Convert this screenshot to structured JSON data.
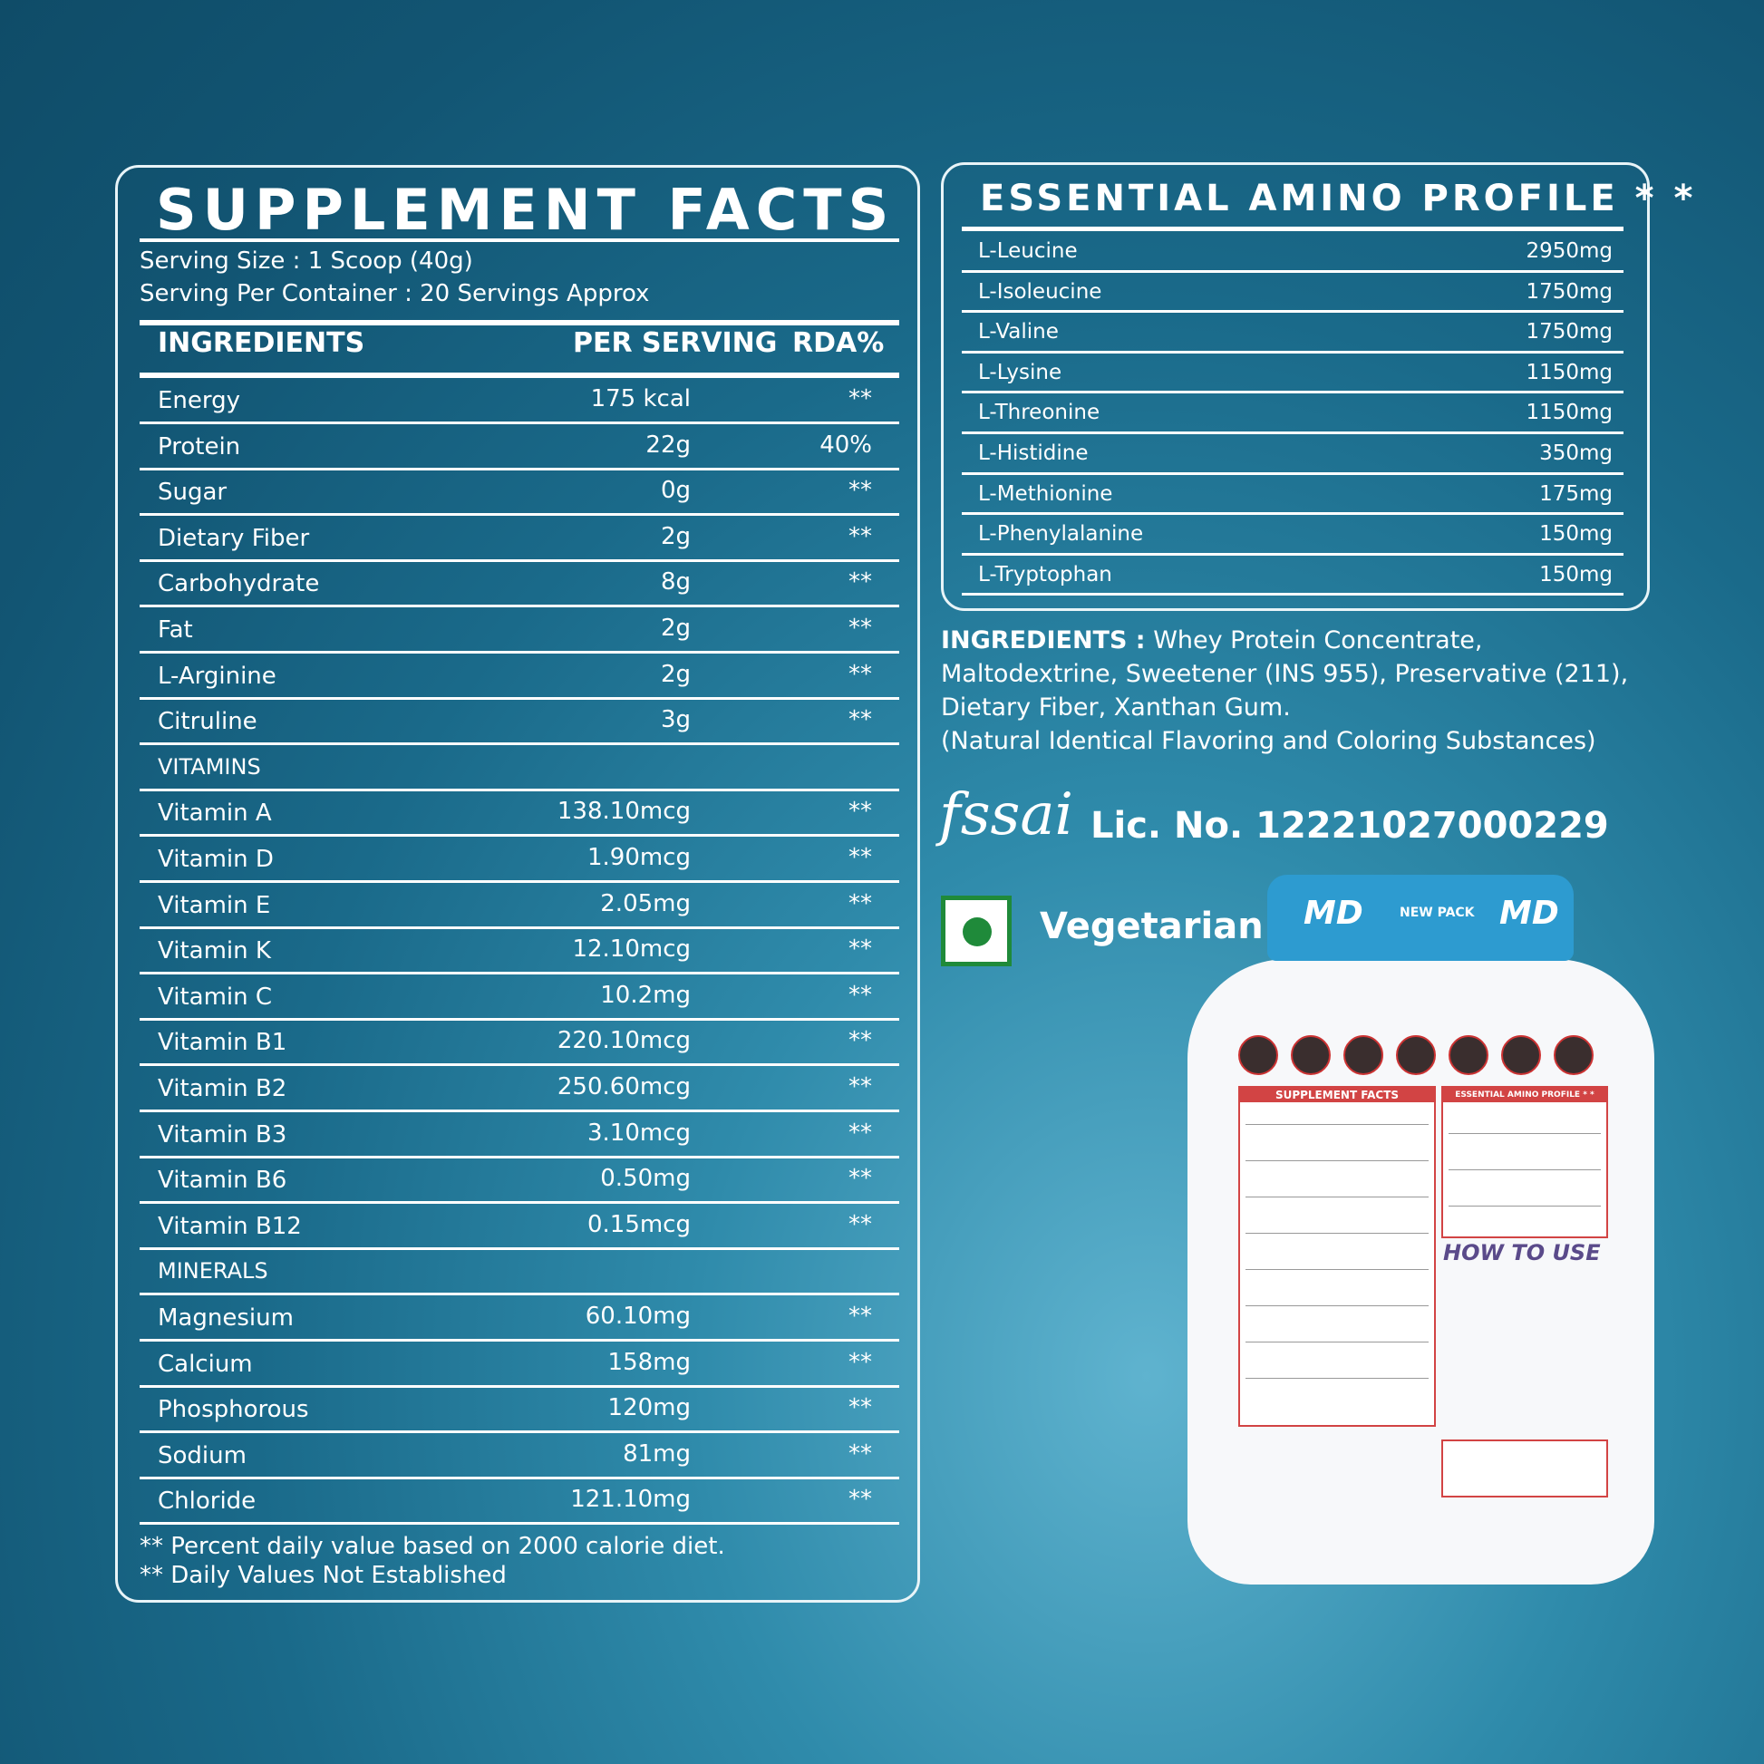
{
  "supplement_facts": {
    "title": "SUPPLEMENT FACTS",
    "serving_size": "Serving Size : 1 Scoop (40g)",
    "servings_per_container": "Serving Per Container : 20 Servings Approx",
    "headers": {
      "ingredients": "INGREDIENTS",
      "per_serving": "PER SERVING",
      "rda": "RDA%"
    },
    "rows": [
      {
        "name": "Energy",
        "value": "175 kcal",
        "rda": "**"
      },
      {
        "name": "Protein",
        "value": "22g",
        "rda": "40%"
      },
      {
        "name": "Sugar",
        "value": "0g",
        "rda": "**"
      },
      {
        "name": "Dietary Fiber",
        "value": "2g",
        "rda": "**"
      },
      {
        "name": "Carbohydrate",
        "value": "8g",
        "rda": "**"
      },
      {
        "name": "Fat",
        "value": "2g",
        "rda": "**"
      },
      {
        "name": "L-Arginine",
        "value": "2g",
        "rda": "**"
      },
      {
        "name": "Citruline",
        "value": "3g",
        "rda": "**"
      },
      {
        "name": "VITAMINS",
        "section": true
      },
      {
        "name": "Vitamin A",
        "value": "138.10mcg",
        "rda": "**"
      },
      {
        "name": "Vitamin D",
        "value": "1.90mcg",
        "rda": "**"
      },
      {
        "name": "Vitamin E",
        "value": "2.05mg",
        "rda": "**"
      },
      {
        "name": "Vitamin K",
        "value": "12.10mcg",
        "rda": "**"
      },
      {
        "name": "Vitamin C",
        "value": "10.2mg",
        "rda": "**"
      },
      {
        "name": "Vitamin B1",
        "value": "220.10mcg",
        "rda": "**"
      },
      {
        "name": "Vitamin B2",
        "value": "250.60mcg",
        "rda": "**"
      },
      {
        "name": "Vitamin B3",
        "value": "3.10mcg",
        "rda": "**"
      },
      {
        "name": "Vitamin B6",
        "value": "0.50mg",
        "rda": "**"
      },
      {
        "name": "Vitamin B12",
        "value": "0.15mcg",
        "rda": "**"
      },
      {
        "name": "MINERALS",
        "section": true
      },
      {
        "name": "Magnesium",
        "value": "60.10mg",
        "rda": "**"
      },
      {
        "name": "Calcium",
        "value": "158mg",
        "rda": "**"
      },
      {
        "name": "Phosphorous",
        "value": "120mg",
        "rda": "**"
      },
      {
        "name": "Sodium",
        "value": "81mg",
        "rda": "**"
      },
      {
        "name": "Chloride",
        "value": "121.10mg",
        "rda": "**"
      }
    ],
    "footnotes": [
      "** Percent daily value based on 2000 calorie diet.",
      "** Daily Values Not Established"
    ]
  },
  "amino_profile": {
    "title": "ESSENTIAL AMINO PROFILE * *",
    "rows": [
      {
        "name": "L-Leucine",
        "value": "2950mg"
      },
      {
        "name": "L-Isoleucine",
        "value": "1750mg"
      },
      {
        "name": "L-Valine",
        "value": "1750mg"
      },
      {
        "name": "L-Lysine",
        "value": "1150mg"
      },
      {
        "name": "L-Threonine",
        "value": "1150mg"
      },
      {
        "name": "L-Histidine",
        "value": "350mg"
      },
      {
        "name": "L-Methionine",
        "value": "175mg"
      },
      {
        "name": "L-Phenylalanine",
        "value": "150mg"
      },
      {
        "name": "L-Tryptophan",
        "value": "150mg"
      }
    ]
  },
  "ingredients_block": {
    "label": "INGREDIENTS :",
    "text": "Whey Protein Concentrate, Maltodextrine, Sweetener (INS 955), Preservative (211), Dietary Fiber, Xanthan Gum.",
    "note": "(Natural Identical Flavoring and Coloring Substances)"
  },
  "fssai": {
    "logo_text": "fssai",
    "license": "Lic. No. 12221027000229"
  },
  "vegetarian": {
    "label": "Vegetarian",
    "color": "#1f8a3a"
  },
  "product_jar": {
    "brand": "MD",
    "new_pack": "NEW PACK",
    "label_title_left": "SUPPLEMENT FACTS",
    "label_title_right": "ESSENTIAL AMINO PROFILE * *",
    "how_to_use": "HOW TO USE",
    "accent": "#d24444",
    "lid_color": "#2d9bd0"
  },
  "colors": {
    "bg_dark": "#0f4c68",
    "bg_light": "#5fb3cf",
    "text": "#ffffff"
  }
}
